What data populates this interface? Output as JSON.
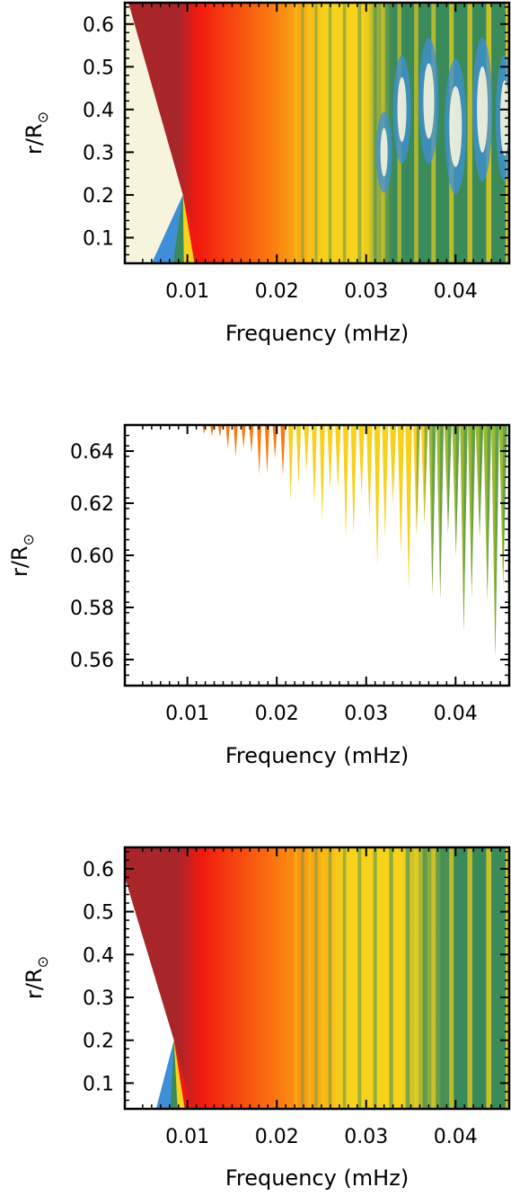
{
  "chart_data": [
    {
      "type": "heatmap",
      "title": "",
      "xlabel": "Frequency (mHz)",
      "ylabel": "r/R",
      "ylabel_symbol": "⊙",
      "xlim": [
        0.003,
        0.046
      ],
      "ylim": [
        0.04,
        0.65
      ],
      "xticks": [
        0.01,
        0.02,
        0.03,
        0.04
      ],
      "xtick_labels": [
        "0.01",
        "0.02",
        "0.03",
        "0.04"
      ],
      "yticks": [
        0.1,
        0.2,
        0.3,
        0.4,
        0.5,
        0.6
      ],
      "ytick_labels": [
        "0.1",
        "0.2",
        "0.3",
        "0.4",
        "0.5",
        "0.6"
      ],
      "grid": false
    },
    {
      "type": "heatmap",
      "title": "",
      "xlabel": "Frequency (mHz)",
      "ylabel": "r/R",
      "ylabel_symbol": "⊙",
      "xlim": [
        0.003,
        0.046
      ],
      "ylim": [
        0.55,
        0.65
      ],
      "xticks": [
        0.01,
        0.02,
        0.03,
        0.04
      ],
      "xtick_labels": [
        "0.01",
        "0.02",
        "0.03",
        "0.04"
      ],
      "yticks": [
        0.56,
        0.58,
        0.6,
        0.62,
        0.64
      ],
      "ytick_labels": [
        "0.56",
        "0.58",
        "0.60",
        "0.62",
        "0.64"
      ],
      "grid": false
    },
    {
      "type": "heatmap",
      "title": "",
      "xlabel": "Frequency (mHz)",
      "ylabel": "r/R",
      "ylabel_symbol": "⊙",
      "xlim": [
        0.003,
        0.046
      ],
      "ylim": [
        0.04,
        0.65
      ],
      "xticks": [
        0.01,
        0.02,
        0.03,
        0.04
      ],
      "xtick_labels": [
        "0.01",
        "0.02",
        "0.03",
        "0.04"
      ],
      "yticks": [
        0.1,
        0.2,
        0.3,
        0.4,
        0.5,
        0.6
      ],
      "ytick_labels": [
        "0.1",
        "0.2",
        "0.3",
        "0.4",
        "0.5",
        "0.6"
      ],
      "grid": false
    }
  ],
  "colors": {
    "darkred": "#a8262a",
    "red": "#f21a0f",
    "orange": "#fb7a10",
    "yellow": "#f6d21b",
    "green": "#3a8a5a",
    "blue": "#3f8fd8",
    "ivory": "#f6f4dd"
  }
}
